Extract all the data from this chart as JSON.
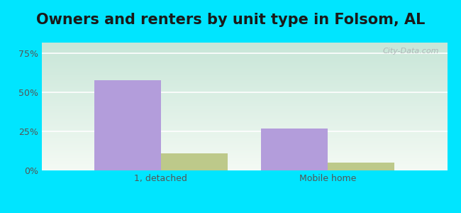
{
  "title": "Owners and renters by unit type in Folsom, AL",
  "categories": [
    "1, detached",
    "Mobile home"
  ],
  "owner_values": [
    58,
    27
  ],
  "renter_values": [
    11,
    5
  ],
  "owner_color": "#b39ddb",
  "renter_color": "#bdc98a",
  "yticks": [
    0,
    25,
    50,
    75
  ],
  "ytick_labels": [
    "0%",
    "25%",
    "50%",
    "75%"
  ],
  "ylim": [
    0,
    82
  ],
  "outer_background": "#00e5ff",
  "title_fontsize": 15,
  "bar_width": 0.28
}
